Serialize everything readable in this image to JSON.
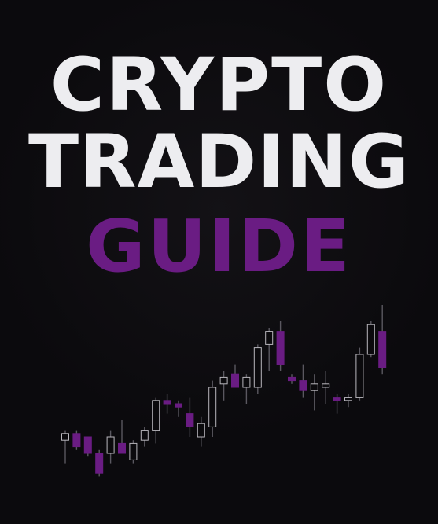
{
  "cover": {
    "title_line1": "CRYPTO",
    "title_line2": "TRADING",
    "title_line3": "GUIDE"
  },
  "colors": {
    "background": "#0b0a0d",
    "title_main": "#ededf0",
    "title_accent": "#6a1c83",
    "candle_gray": "#b9b7bd",
    "candle_purple": "#6a1c83",
    "wick": "#5a5860"
  },
  "chart_data": {
    "type": "candlestick",
    "series": [
      {
        "o": 9,
        "h": 12,
        "l": 2,
        "c": 11,
        "color": "gray"
      },
      {
        "o": 11,
        "h": 12,
        "l": 6,
        "c": 7,
        "color": "purple"
      },
      {
        "o": 10,
        "h": 10,
        "l": 4,
        "c": 5,
        "color": "purple"
      },
      {
        "o": 5,
        "h": 6,
        "l": -2,
        "c": -1,
        "color": "purple"
      },
      {
        "o": 5,
        "h": 12,
        "l": 2,
        "c": 10,
        "color": "gray"
      },
      {
        "o": 8,
        "h": 15,
        "l": 5,
        "c": 5,
        "color": "purple"
      },
      {
        "o": 3,
        "h": 9,
        "l": 2,
        "c": 8,
        "color": "gray"
      },
      {
        "o": 9,
        "h": 13,
        "l": 7,
        "c": 12,
        "color": "gray"
      },
      {
        "o": 12,
        "h": 22,
        "l": 8,
        "c": 21,
        "color": "gray"
      },
      {
        "o": 21,
        "h": 23,
        "l": 17,
        "c": 20,
        "color": "purple"
      },
      {
        "o": 20,
        "h": 21,
        "l": 16,
        "c": 19,
        "color": "purple"
      },
      {
        "o": 17,
        "h": 22,
        "l": 10,
        "c": 13,
        "color": "purple"
      },
      {
        "o": 10,
        "h": 16,
        "l": 7,
        "c": 14,
        "color": "gray"
      },
      {
        "o": 13,
        "h": 27,
        "l": 10,
        "c": 25,
        "color": "gray"
      },
      {
        "o": 26,
        "h": 30,
        "l": 21,
        "c": 28,
        "color": "gray"
      },
      {
        "o": 29,
        "h": 32,
        "l": 25,
        "c": 25,
        "color": "purple"
      },
      {
        "o": 25,
        "h": 29,
        "l": 20,
        "c": 28,
        "color": "gray"
      },
      {
        "o": 25,
        "h": 38,
        "l": 23,
        "c": 37,
        "color": "gray"
      },
      {
        "o": 38,
        "h": 43,
        "l": 30,
        "c": 42,
        "color": "gray"
      },
      {
        "o": 42,
        "h": 45,
        "l": 30,
        "c": 32,
        "color": "purple"
      },
      {
        "o": 28,
        "h": 29,
        "l": 26,
        "c": 27,
        "color": "purple"
      },
      {
        "o": 27,
        "h": 32,
        "l": 22,
        "c": 24,
        "color": "purple"
      },
      {
        "o": 24,
        "h": 29,
        "l": 18,
        "c": 26,
        "color": "gray"
      },
      {
        "o": 26,
        "h": 30,
        "l": 20,
        "c": 25,
        "color": "gray"
      },
      {
        "o": 22,
        "h": 23,
        "l": 17,
        "c": 21,
        "color": "purple"
      },
      {
        "o": 21,
        "h": 23,
        "l": 19,
        "c": 22,
        "color": "gray"
      },
      {
        "o": 22,
        "h": 37,
        "l": 21,
        "c": 35,
        "color": "gray"
      },
      {
        "o": 35,
        "h": 45,
        "l": 34,
        "c": 44,
        "color": "gray"
      },
      {
        "o": 42,
        "h": 50,
        "l": 29,
        "c": 31,
        "color": "purple"
      }
    ]
  }
}
